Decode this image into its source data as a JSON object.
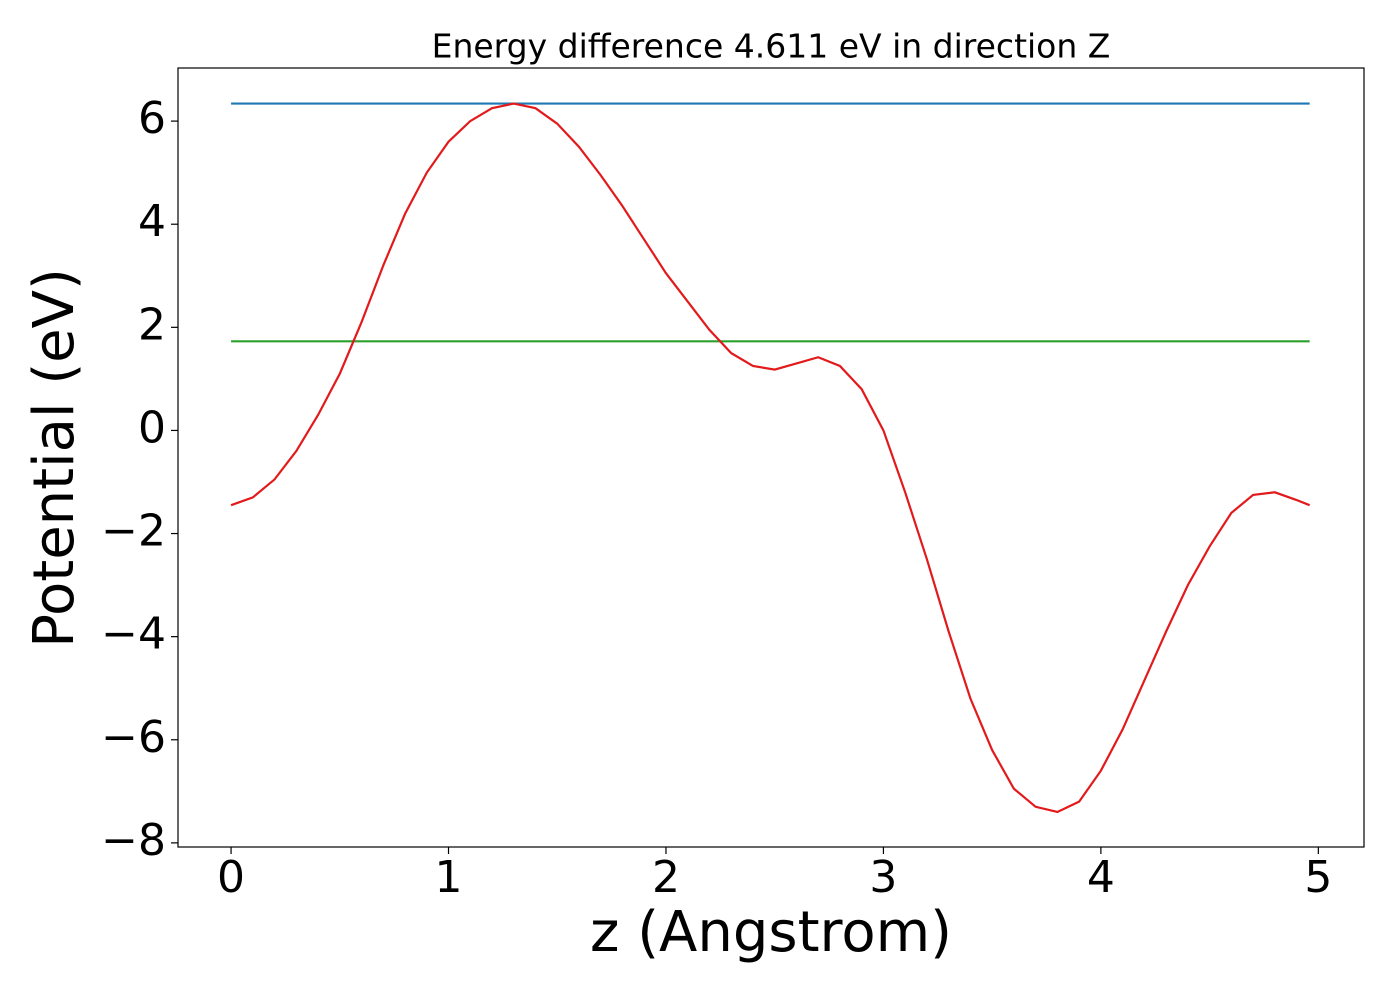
{
  "chart_data": {
    "type": "line",
    "title": "Energy difference 4.611 eV in direction Z",
    "x_label": "z (Angstrom)",
    "y_label": "Potential (eV)",
    "xlim": [
      -0.244,
      5.21
    ],
    "ylim": [
      -8.08,
      7.03
    ],
    "xticks": [
      0,
      1,
      2,
      3,
      4,
      5
    ],
    "yticks": [
      {
        "value": -8,
        "label": "−8"
      },
      {
        "value": -6,
        "label": "−6"
      },
      {
        "value": -4,
        "label": "−4"
      },
      {
        "value": -2,
        "label": "−2"
      },
      0,
      2,
      4,
      6
    ],
    "series": [
      {
        "color": "#1f77b4",
        "x": [
          0,
          4.96
        ],
        "values": [
          6.34,
          6.34
        ]
      },
      {
        "color": "#2ca02c",
        "x": [
          0,
          4.96
        ],
        "values": [
          1.729,
          1.729
        ]
      },
      {
        "color": "#e31a1c",
        "x": [
          0,
          0.1,
          0.2,
          0.3,
          0.4,
          0.5,
          0.6,
          0.7,
          0.8,
          0.9,
          1.0,
          1.1,
          1.2,
          1.3,
          1.4,
          1.5,
          1.6,
          1.7,
          1.8,
          1.9,
          2.0,
          2.1,
          2.2,
          2.3,
          2.4,
          2.5,
          2.6,
          2.7,
          2.8,
          2.9,
          3.0,
          3.1,
          3.2,
          3.3,
          3.4,
          3.5,
          3.6,
          3.7,
          3.8,
          3.9,
          4.0,
          4.1,
          4.2,
          4.3,
          4.4,
          4.5,
          4.6,
          4.7,
          4.8,
          4.9,
          4.96
        ],
        "values": [
          -1.45,
          -1.3,
          -0.95,
          -0.4,
          0.3,
          1.1,
          2.1,
          3.2,
          4.2,
          5.0,
          5.6,
          6.0,
          6.25,
          6.34,
          6.25,
          5.95,
          5.5,
          4.95,
          4.35,
          3.7,
          3.05,
          2.5,
          1.95,
          1.5,
          1.25,
          1.18,
          1.3,
          1.42,
          1.25,
          0.8,
          0.0,
          -1.2,
          -2.5,
          -3.9,
          -5.2,
          -6.2,
          -6.95,
          -7.3,
          -7.4,
          -7.2,
          -6.6,
          -5.8,
          -4.85,
          -3.9,
          -3.0,
          -2.25,
          -1.6,
          -1.25,
          -1.2,
          -1.35,
          -1.45
        ]
      }
    ]
  }
}
